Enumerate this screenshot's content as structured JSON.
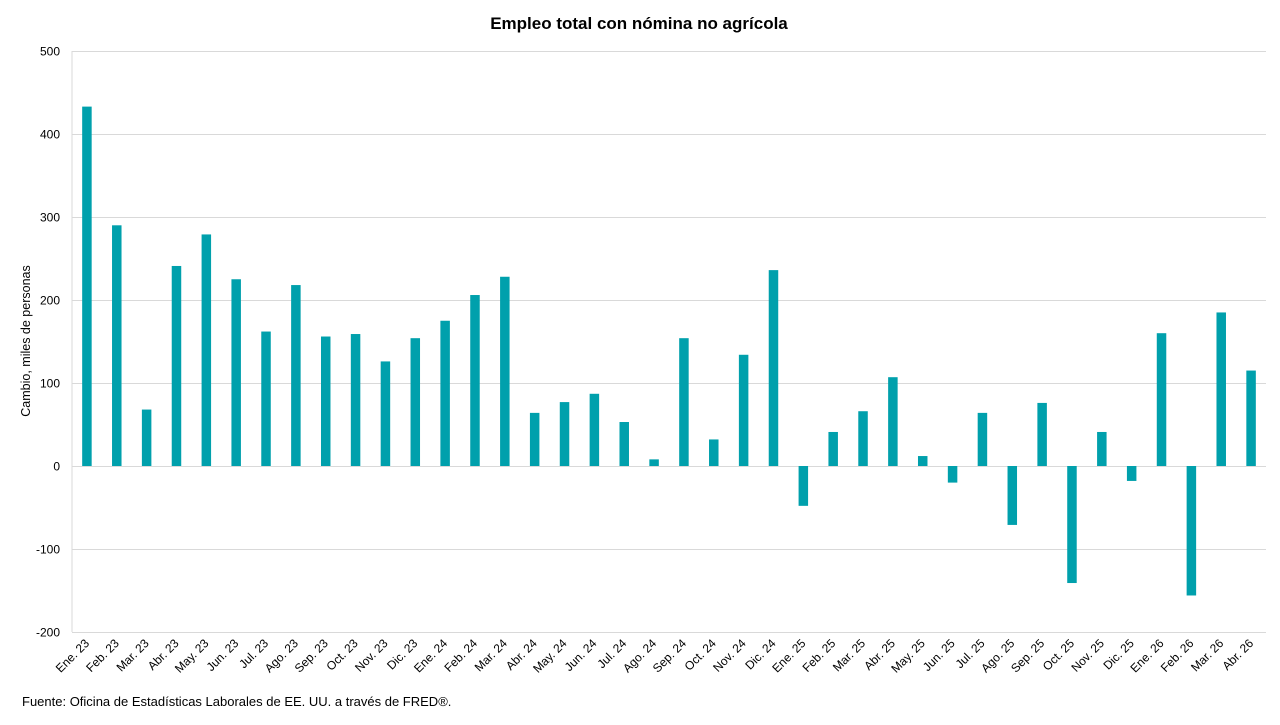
{
  "chart_data": {
    "type": "bar",
    "title": "Empleo total con nómina no agrícola",
    "ylabel": "Cambio, miles de personas",
    "xlabel": "",
    "ylim": [
      -200,
      500
    ],
    "yticks": [
      -200,
      -100,
      0,
      100,
      200,
      300,
      400,
      500
    ],
    "grid": true,
    "legend": "none",
    "bar_color": "#00a0ac",
    "grid_color": "#d9d9d9",
    "categories": [
      "Ene. 23",
      "Feb. 23",
      "Mar. 23",
      "Abr. 23",
      "May. 23",
      "Jun. 23",
      "Jul. 23",
      "Ago. 23",
      "Sep. 23",
      "Oct. 23",
      "Nov. 23",
      "Dic. 23",
      "Ene. 24",
      "Feb. 24",
      "Mar. 24",
      "Abr. 24",
      "May. 24",
      "Jun. 24",
      "Jul. 24",
      "Ago. 24",
      "Sep. 24",
      "Oct. 24",
      "Nov. 24",
      "Dic. 24",
      "Ene. 25",
      "Feb. 25",
      "Mar. 25",
      "Abr. 25",
      "May. 25",
      "Jun. 25",
      "Jul. 25",
      "Ago. 25",
      "Sep. 25",
      "Oct. 25",
      "Nov. 25",
      "Dic. 25",
      "Ene. 26",
      "Feb. 26",
      "Mar. 26",
      "Abr. 26"
    ],
    "values": [
      433,
      290,
      68,
      241,
      279,
      225,
      162,
      218,
      156,
      159,
      126,
      154,
      175,
      206,
      228,
      64,
      77,
      87,
      53,
      8,
      154,
      32,
      134,
      236,
      -48,
      41,
      66,
      107,
      12,
      -20,
      64,
      -71,
      76,
      -141,
      41,
      -18,
      160,
      -156,
      185,
      115
    ]
  },
  "footer": {
    "source": "Fuente: Oficina de Estadísticas Laborales de EE. UU. a través de FRED®."
  }
}
